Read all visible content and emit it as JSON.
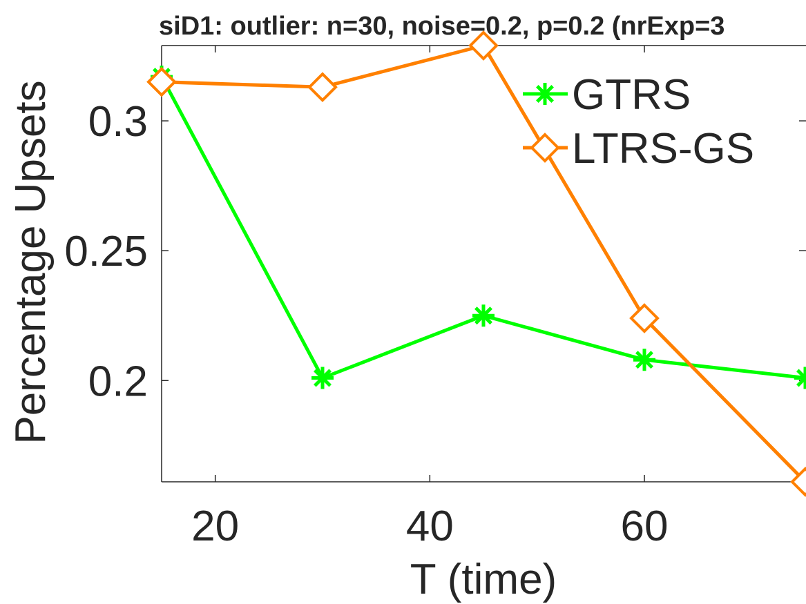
{
  "chart_data": {
    "type": "line",
    "title": "siD1: outlier: n=30, noise=0.2, p=0.2 (nrExp=3",
    "xlabel": "T (time)",
    "ylabel": "Percentage Upsets",
    "xlim": [
      15,
      75
    ],
    "ylim": [
      0.161,
      0.329
    ],
    "x_ticks": [
      20,
      40,
      60
    ],
    "y_ticks": [
      0.2,
      0.25,
      0.3
    ],
    "x_tick_labels": [
      "20",
      "40",
      "60"
    ],
    "y_tick_labels": [
      "0.2",
      "0.25",
      "0.3"
    ],
    "x": [
      15,
      30,
      45,
      60,
      75
    ],
    "series": [
      {
        "name": "GTRS",
        "values": [
          0.317,
          0.201,
          0.225,
          0.208,
          0.201
        ],
        "color": "#00ff00",
        "marker": "asterisk"
      },
      {
        "name": "LTRS-GS",
        "values": [
          0.315,
          0.313,
          0.329,
          0.224,
          0.161
        ],
        "color": "#ff8000",
        "marker": "diamond"
      }
    ],
    "legend_position": "top-right",
    "grid": false
  }
}
